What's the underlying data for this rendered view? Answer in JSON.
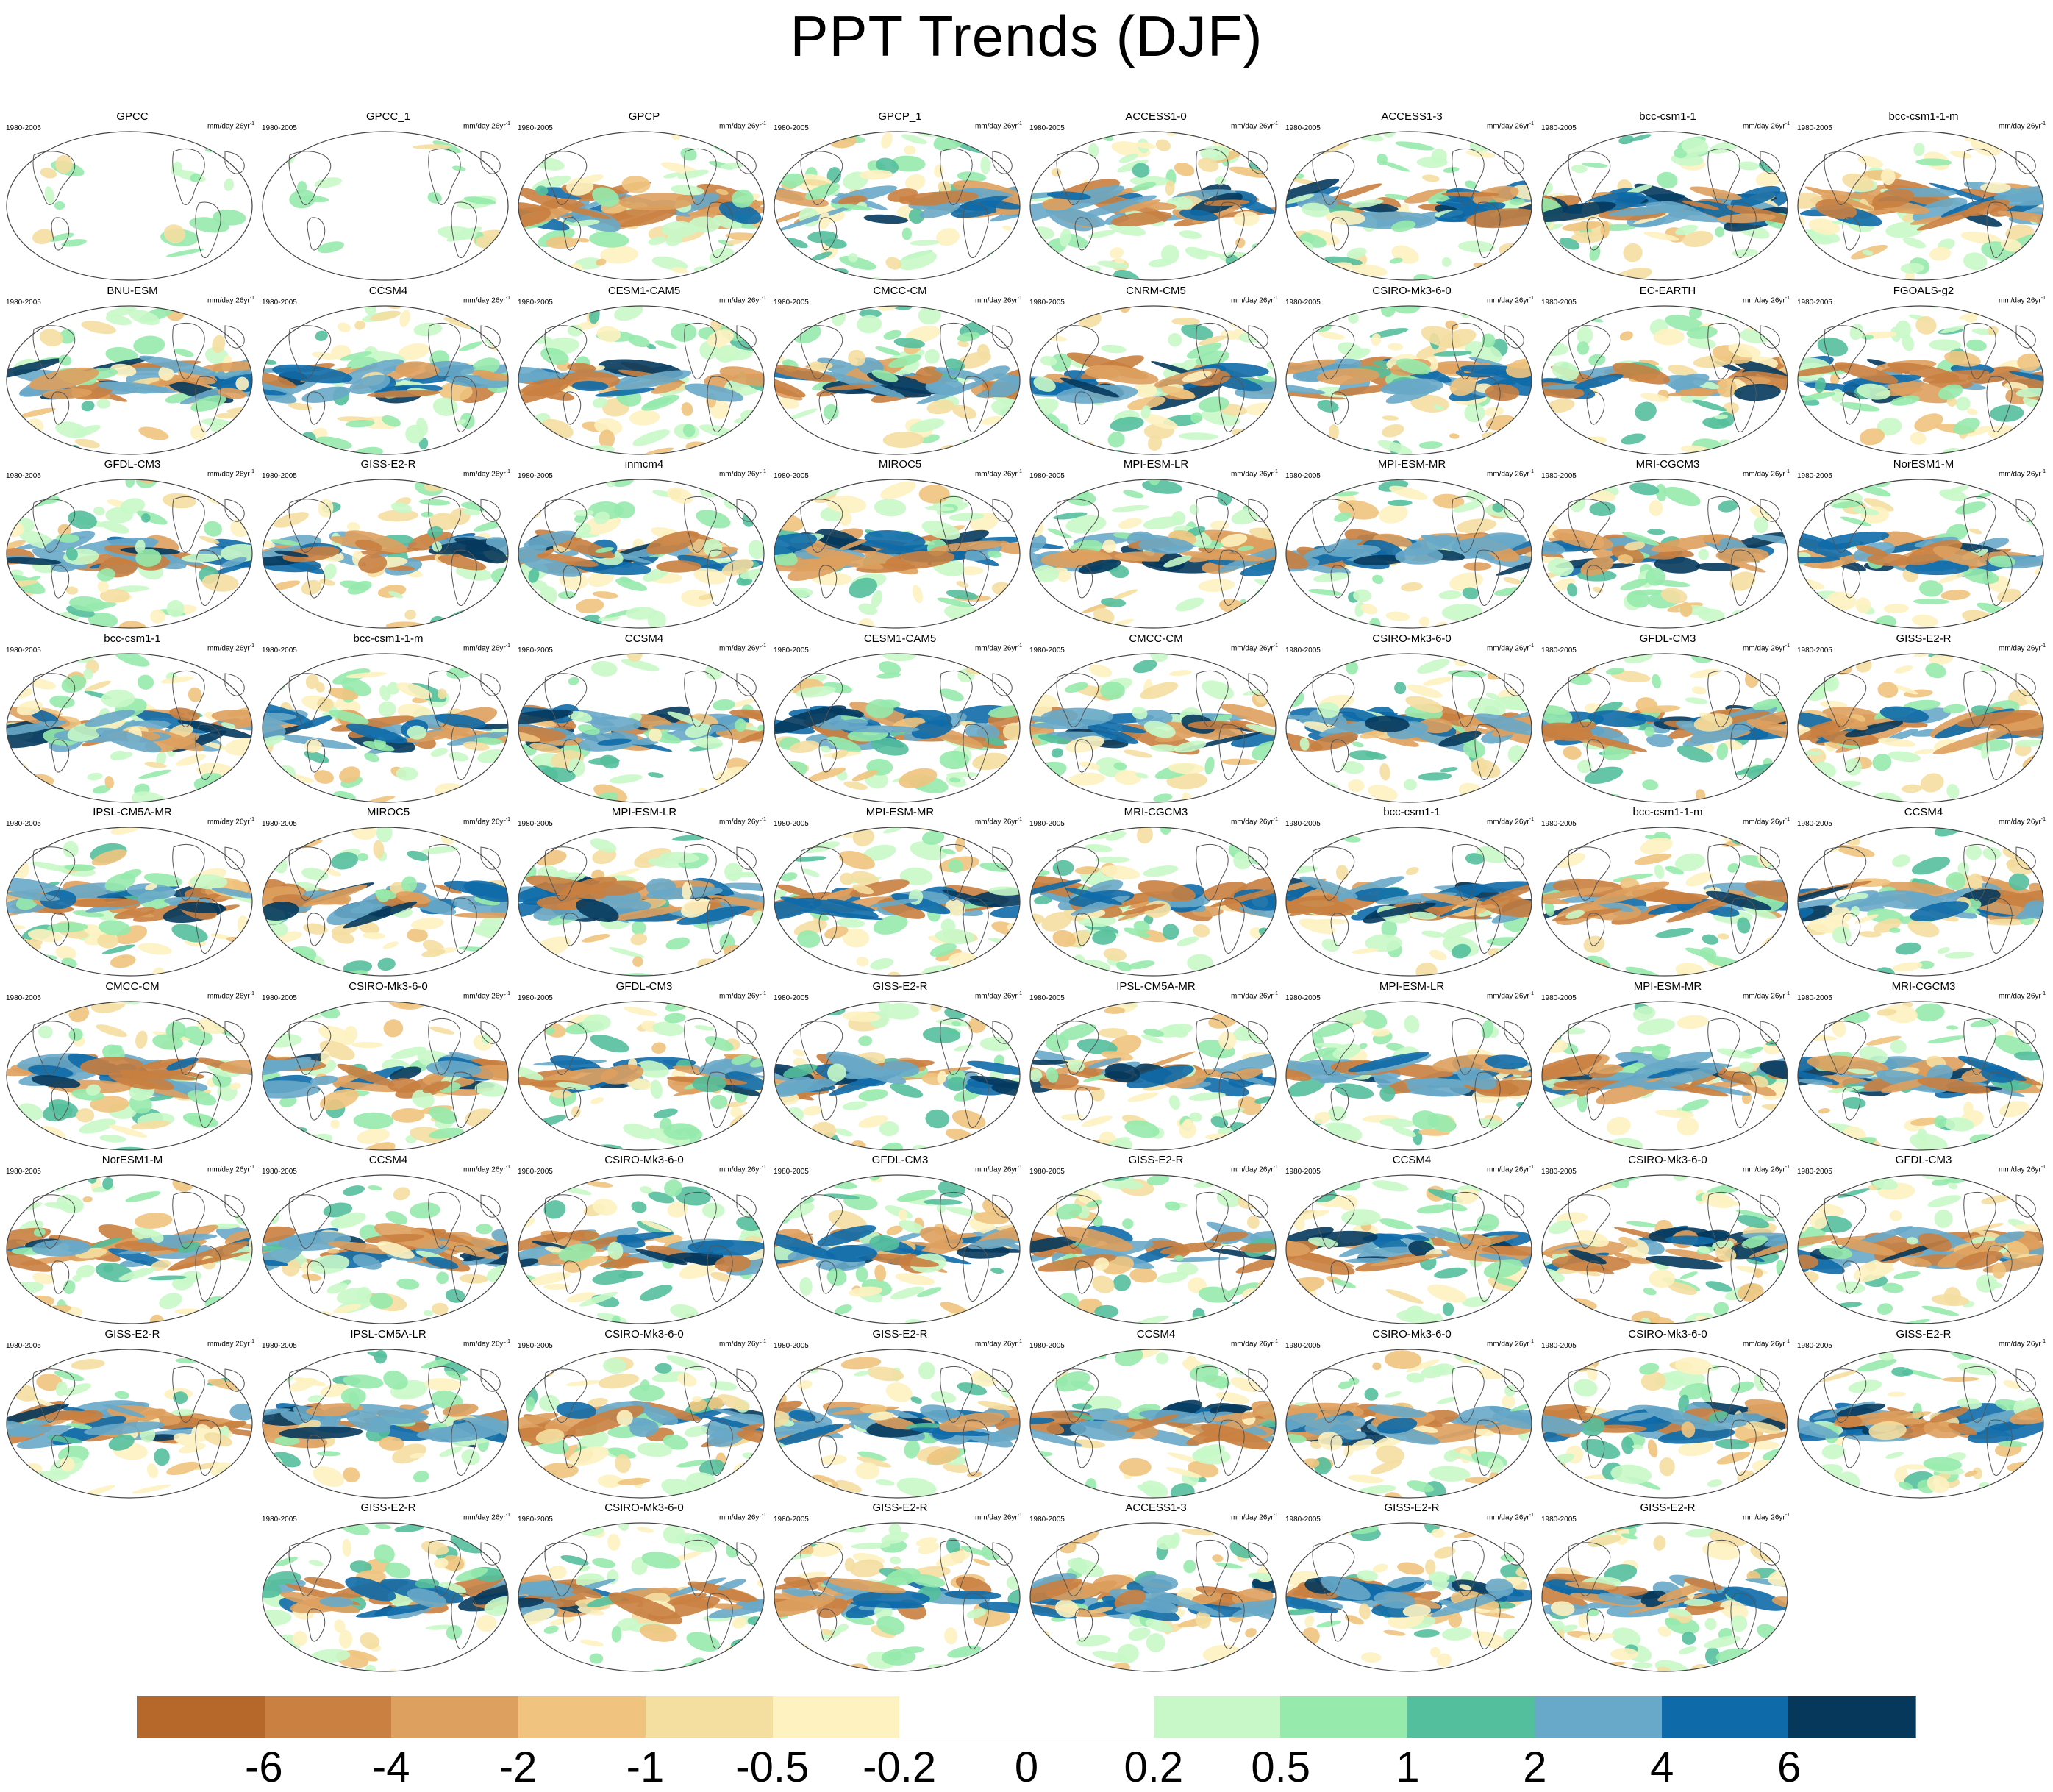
{
  "title": "PPT Trends (DJF)",
  "period": "1980-2005",
  "units_base": "mm/day 26yr",
  "units_exp": "-1",
  "rows": [
    [
      "GPCC",
      "GPCC_1",
      "GPCP",
      "GPCP_1",
      "ACCESS1-0",
      "ACCESS1-3",
      "bcc-csm1-1",
      "bcc-csm1-1-m"
    ],
    [
      "BNU-ESM",
      "CCSM4",
      "CESM1-CAM5",
      "CMCC-CM",
      "CNRM-CM5",
      "CSIRO-Mk3-6-0",
      "EC-EARTH",
      "FGOALS-g2"
    ],
    [
      "GFDL-CM3",
      "GISS-E2-R",
      "inmcm4",
      "MIROC5",
      "MPI-ESM-LR",
      "MPI-ESM-MR",
      "MRI-CGCM3",
      "NorESM1-M"
    ],
    [
      "bcc-csm1-1",
      "bcc-csm1-1-m",
      "CCSM4",
      "CESM1-CAM5",
      "CMCC-CM",
      "CSIRO-Mk3-6-0",
      "GFDL-CM3",
      "GISS-E2-R"
    ],
    [
      "IPSL-CM5A-MR",
      "MIROC5",
      "MPI-ESM-LR",
      "MPI-ESM-MR",
      "MRI-CGCM3",
      "bcc-csm1-1",
      "bcc-csm1-1-m",
      "CCSM4"
    ],
    [
      "CMCC-CM",
      "CSIRO-Mk3-6-0",
      "GFDL-CM3",
      "GISS-E2-R",
      "IPSL-CM5A-MR",
      "MPI-ESM-LR",
      "MPI-ESM-MR",
      "MRI-CGCM3"
    ],
    [
      "NorESM1-M",
      "CCSM4",
      "CSIRO-Mk3-6-0",
      "GFDL-CM3",
      "GISS-E2-R",
      "CCSM4",
      "CSIRO-Mk3-6-0",
      "GFDL-CM3"
    ],
    [
      "GISS-E2-R",
      "IPSL-CM5A-LR",
      "CSIRO-Mk3-6-0",
      "GISS-E2-R",
      "CCSM4",
      "CSIRO-Mk3-6-0",
      "CSIRO-Mk3-6-0",
      "GISS-E2-R"
    ],
    [
      "GISS-E2-R",
      "CSIRO-Mk3-6-0",
      "GISS-E2-R",
      "ACCESS1-3",
      "GISS-E2-R",
      "GISS-E2-R"
    ]
  ],
  "colorbar": {
    "colors": [
      "#b5682a",
      "#c98040",
      "#dea05e",
      "#f0c47e",
      "#f4dea0",
      "#fdf2c0",
      "#ffffff",
      "#ffffff",
      "#c8f8c8",
      "#96eaac",
      "#54bf9c",
      "#68a8c8",
      "#0e6aa8",
      "#06385c"
    ],
    "tick_labels": [
      "-6",
      "-4",
      "-2",
      "-1",
      "-0.5",
      "-0.2",
      "0",
      "0.2",
      "0.5",
      "1",
      "2",
      "4",
      "6"
    ]
  }
}
